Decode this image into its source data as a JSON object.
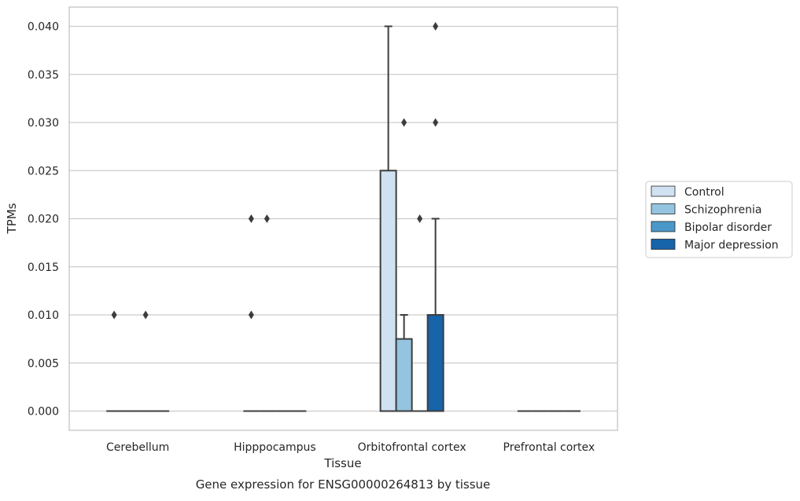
{
  "chart_data": {
    "type": "box",
    "title": "Gene expression for ENSG00000264813 by tissue",
    "xlabel": "Tissue",
    "ylabel": "TPMs",
    "ylim": [
      -0.002,
      0.042
    ],
    "y_ticks": [
      "0.000",
      "0.005",
      "0.010",
      "0.015",
      "0.020",
      "0.025",
      "0.030",
      "0.035",
      "0.040"
    ],
    "grid": "horizontal",
    "legend_placement": "right",
    "categories": [
      "Cerebellum",
      "Hipppocampus",
      "Orbitofrontal cortex",
      "Prefrontal cortex"
    ],
    "series": [
      {
        "name": "Control",
        "color": "#d0e1f2",
        "boxes": [
          {
            "q1": 0,
            "median": 0,
            "q3": 0,
            "whisker_low": 0,
            "whisker_high": 0,
            "outliers": [
              0.01
            ]
          },
          {
            "q1": 0,
            "median": 0,
            "q3": 0,
            "whisker_low": 0,
            "whisker_high": 0,
            "outliers": [
              0.01,
              0.02
            ]
          },
          {
            "q1": 0,
            "median": 0,
            "q3": 0.025,
            "whisker_low": 0,
            "whisker_high": 0.04,
            "outliers": []
          },
          {
            "q1": 0,
            "median": 0,
            "q3": 0,
            "whisker_low": 0,
            "whisker_high": 0,
            "outliers": []
          }
        ]
      },
      {
        "name": "Schizophrenia",
        "color": "#94c4df",
        "boxes": [
          {
            "q1": 0,
            "median": 0,
            "q3": 0,
            "whisker_low": 0,
            "whisker_high": 0,
            "outliers": []
          },
          {
            "q1": 0,
            "median": 0,
            "q3": 0,
            "whisker_low": 0,
            "whisker_high": 0,
            "outliers": [
              0.02
            ]
          },
          {
            "q1": 0,
            "median": 0,
            "q3": 0.0075,
            "whisker_low": 0,
            "whisker_high": 0.01,
            "outliers": [
              0.03
            ]
          },
          {
            "q1": 0,
            "median": 0,
            "q3": 0,
            "whisker_low": 0,
            "whisker_high": 0,
            "outliers": []
          }
        ]
      },
      {
        "name": "Bipolar disorder",
        "color": "#4a98c9",
        "boxes": [
          {
            "q1": 0,
            "median": 0,
            "q3": 0,
            "whisker_low": 0,
            "whisker_high": 0,
            "outliers": [
              0.01
            ]
          },
          {
            "q1": 0,
            "median": 0,
            "q3": 0,
            "whisker_low": 0,
            "whisker_high": 0,
            "outliers": []
          },
          {
            "q1": 0,
            "median": 0,
            "q3": 0,
            "whisker_low": 0,
            "whisker_high": 0,
            "outliers": [
              0.02
            ]
          },
          {
            "q1": 0,
            "median": 0,
            "q3": 0,
            "whisker_low": 0,
            "whisker_high": 0,
            "outliers": []
          }
        ]
      },
      {
        "name": "Major depression",
        "color": "#1764ab",
        "boxes": [
          {
            "q1": 0,
            "median": 0,
            "q3": 0,
            "whisker_low": 0,
            "whisker_high": 0,
            "outliers": []
          },
          {
            "q1": 0,
            "median": 0,
            "q3": 0,
            "whisker_low": 0,
            "whisker_high": 0,
            "outliers": []
          },
          {
            "q1": 0,
            "median": 0,
            "q3": 0.01,
            "whisker_low": 0,
            "whisker_high": 0.02,
            "outliers": [
              0.03,
              0.04
            ]
          },
          {
            "q1": 0,
            "median": 0,
            "q3": 0,
            "whisker_low": 0,
            "whisker_high": 0,
            "outliers": []
          }
        ]
      }
    ]
  },
  "colors": {
    "grid": "#cccccc",
    "axis_frame": "#cccccc",
    "box_edge": "#3d3d3d"
  }
}
